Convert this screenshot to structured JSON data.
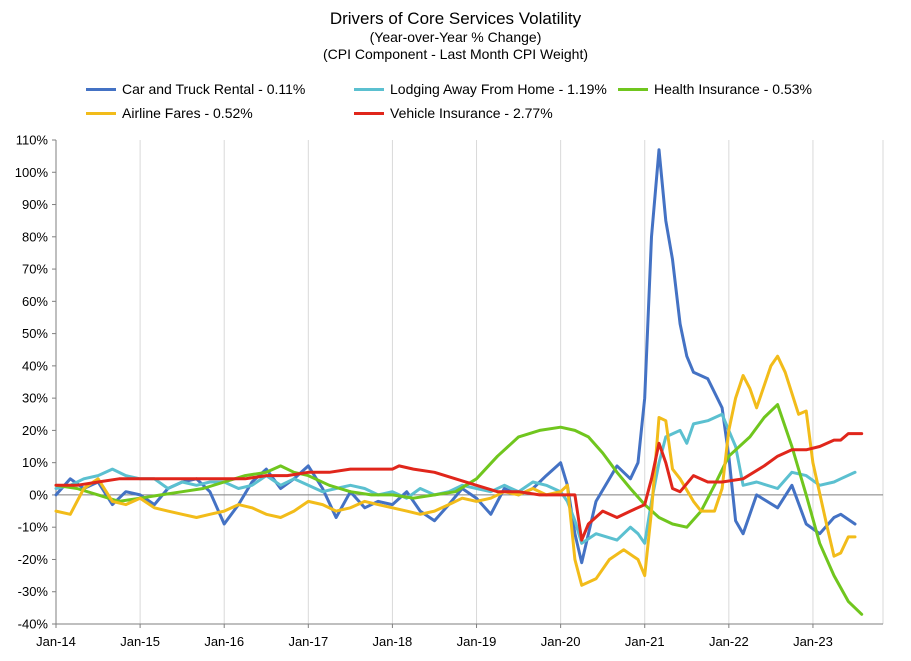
{
  "chart_data": {
    "type": "line",
    "title": "Drivers of Core Services Volatility",
    "subtitle_lines": [
      "(Year-over-Year % Change)",
      "(CPI Component - Last Month CPI Weight)"
    ],
    "y_ticks": [
      "110%",
      "100%",
      "90%",
      "80%",
      "70%",
      "60%",
      "50%",
      "40%",
      "30%",
      "20%",
      "10%",
      "0%",
      "-10%",
      "-20%",
      "-30%",
      "-40%"
    ],
    "x_ticks": [
      "Jan-14",
      "Jan-15",
      "Jan-16",
      "Jan-17",
      "Jan-18",
      "Jan-19",
      "Jan-20",
      "Jan-21",
      "Jan-22",
      "Jan-23"
    ],
    "ylim": [
      -40,
      110
    ],
    "xlim": [
      2014.0,
      2023.833
    ],
    "grid": "vertical",
    "legend_position": "top",
    "series": [
      {
        "name": "Car and Truck Rental - 0.11%",
        "color": "#4472C4",
        "points": [
          [
            2014.0,
            0
          ],
          [
            2014.17,
            5
          ],
          [
            2014.33,
            2
          ],
          [
            2014.5,
            4
          ],
          [
            2014.67,
            -3
          ],
          [
            2014.83,
            1
          ],
          [
            2015.0,
            0
          ],
          [
            2015.17,
            -3
          ],
          [
            2015.33,
            2
          ],
          [
            2015.5,
            4
          ],
          [
            2015.67,
            5
          ],
          [
            2015.83,
            1
          ],
          [
            2016.0,
            -9
          ],
          [
            2016.17,
            -3
          ],
          [
            2016.33,
            4
          ],
          [
            2016.5,
            8
          ],
          [
            2016.67,
            2
          ],
          [
            2016.83,
            5
          ],
          [
            2017.0,
            9
          ],
          [
            2017.17,
            2
          ],
          [
            2017.33,
            -7
          ],
          [
            2017.5,
            1
          ],
          [
            2017.67,
            -4
          ],
          [
            2017.83,
            -2
          ],
          [
            2018.0,
            -3
          ],
          [
            2018.17,
            1
          ],
          [
            2018.33,
            -5
          ],
          [
            2018.5,
            -8
          ],
          [
            2018.67,
            -3
          ],
          [
            2018.83,
            2
          ],
          [
            2019.0,
            -1
          ],
          [
            2019.17,
            -6
          ],
          [
            2019.33,
            2
          ],
          [
            2019.5,
            0
          ],
          [
            2019.67,
            2
          ],
          [
            2019.83,
            6
          ],
          [
            2020.0,
            10
          ],
          [
            2020.08,
            3
          ],
          [
            2020.17,
            -12
          ],
          [
            2020.25,
            -21
          ],
          [
            2020.42,
            -2
          ],
          [
            2020.67,
            9
          ],
          [
            2020.83,
            5
          ],
          [
            2020.92,
            10
          ],
          [
            2021.0,
            30
          ],
          [
            2021.08,
            80
          ],
          [
            2021.17,
            107
          ],
          [
            2021.25,
            85
          ],
          [
            2021.33,
            73
          ],
          [
            2021.42,
            53
          ],
          [
            2021.5,
            43
          ],
          [
            2021.58,
            38
          ],
          [
            2021.75,
            36
          ],
          [
            2021.92,
            27
          ],
          [
            2022.0,
            12
          ],
          [
            2022.08,
            -8
          ],
          [
            2022.17,
            -12
          ],
          [
            2022.33,
            0
          ],
          [
            2022.58,
            -4
          ],
          [
            2022.75,
            3
          ],
          [
            2022.92,
            -9
          ],
          [
            2023.08,
            -12
          ],
          [
            2023.25,
            -7
          ],
          [
            2023.33,
            -6
          ],
          [
            2023.5,
            -9
          ]
        ]
      },
      {
        "name": "Lodging Away From Home - 1.19%",
        "color": "#5BC0D0",
        "points": [
          [
            2014.0,
            2
          ],
          [
            2014.17,
            3
          ],
          [
            2014.33,
            5
          ],
          [
            2014.5,
            6
          ],
          [
            2014.67,
            8
          ],
          [
            2014.83,
            6
          ],
          [
            2015.0,
            5
          ],
          [
            2015.17,
            5
          ],
          [
            2015.33,
            2
          ],
          [
            2015.5,
            4
          ],
          [
            2015.67,
            3
          ],
          [
            2015.83,
            4
          ],
          [
            2016.0,
            4
          ],
          [
            2016.17,
            2
          ],
          [
            2016.33,
            3
          ],
          [
            2016.5,
            6
          ],
          [
            2016.67,
            3
          ],
          [
            2016.83,
            5
          ],
          [
            2017.0,
            3
          ],
          [
            2017.17,
            1
          ],
          [
            2017.33,
            2
          ],
          [
            2017.5,
            3
          ],
          [
            2017.67,
            2
          ],
          [
            2017.83,
            0
          ],
          [
            2018.0,
            1
          ],
          [
            2018.17,
            -1
          ],
          [
            2018.33,
            2
          ],
          [
            2018.5,
            0
          ],
          [
            2018.67,
            1
          ],
          [
            2018.83,
            3
          ],
          [
            2019.0,
            2
          ],
          [
            2019.17,
            1
          ],
          [
            2019.33,
            3
          ],
          [
            2019.5,
            1
          ],
          [
            2019.67,
            4
          ],
          [
            2019.83,
            3
          ],
          [
            2020.0,
            1
          ],
          [
            2020.08,
            -2
          ],
          [
            2020.17,
            -8
          ],
          [
            2020.25,
            -15
          ],
          [
            2020.42,
            -12
          ],
          [
            2020.67,
            -14
          ],
          [
            2020.83,
            -10
          ],
          [
            2020.92,
            -12
          ],
          [
            2021.0,
            -15
          ],
          [
            2021.08,
            -2
          ],
          [
            2021.17,
            10
          ],
          [
            2021.25,
            18
          ],
          [
            2021.42,
            20
          ],
          [
            2021.5,
            16
          ],
          [
            2021.58,
            22
          ],
          [
            2021.75,
            23
          ],
          [
            2021.92,
            25
          ],
          [
            2022.0,
            20
          ],
          [
            2022.08,
            15
          ],
          [
            2022.17,
            3
          ],
          [
            2022.33,
            4
          ],
          [
            2022.58,
            2
          ],
          [
            2022.75,
            7
          ],
          [
            2022.92,
            6
          ],
          [
            2023.08,
            3
          ],
          [
            2023.25,
            4
          ],
          [
            2023.33,
            5
          ],
          [
            2023.5,
            7
          ]
        ]
      },
      {
        "name": "Health Insurance - 0.53%",
        "color": "#70C61E",
        "points": [
          [
            2014.0,
            3
          ],
          [
            2014.25,
            2
          ],
          [
            2014.5,
            0
          ],
          [
            2014.75,
            -2
          ],
          [
            2015.0,
            -1
          ],
          [
            2015.25,
            0
          ],
          [
            2015.5,
            1
          ],
          [
            2015.75,
            2
          ],
          [
            2016.0,
            4
          ],
          [
            2016.25,
            6
          ],
          [
            2016.5,
            7
          ],
          [
            2016.67,
            9
          ],
          [
            2016.83,
            7
          ],
          [
            2017.0,
            6
          ],
          [
            2017.25,
            3
          ],
          [
            2017.5,
            1
          ],
          [
            2017.75,
            0
          ],
          [
            2018.0,
            0
          ],
          [
            2018.25,
            -1
          ],
          [
            2018.5,
            0
          ],
          [
            2018.75,
            1
          ],
          [
            2019.0,
            5
          ],
          [
            2019.25,
            12
          ],
          [
            2019.5,
            18
          ],
          [
            2019.75,
            20
          ],
          [
            2020.0,
            21
          ],
          [
            2020.17,
            20
          ],
          [
            2020.33,
            18
          ],
          [
            2020.5,
            13
          ],
          [
            2020.67,
            7
          ],
          [
            2020.83,
            2
          ],
          [
            2021.0,
            -3
          ],
          [
            2021.17,
            -7
          ],
          [
            2021.33,
            -9
          ],
          [
            2021.5,
            -10
          ],
          [
            2021.67,
            -5
          ],
          [
            2021.83,
            3
          ],
          [
            2022.0,
            12
          ],
          [
            2022.25,
            18
          ],
          [
            2022.42,
            24
          ],
          [
            2022.58,
            28
          ],
          [
            2022.75,
            15
          ],
          [
            2022.92,
            0
          ],
          [
            2023.08,
            -15
          ],
          [
            2023.25,
            -25
          ],
          [
            2023.42,
            -33
          ],
          [
            2023.58,
            -37
          ]
        ]
      },
      {
        "name": "Airline Fares - 0.52%",
        "color": "#F2BC1A",
        "points": [
          [
            2014.0,
            -5
          ],
          [
            2014.17,
            -6
          ],
          [
            2014.33,
            2
          ],
          [
            2014.5,
            5
          ],
          [
            2014.67,
            -2
          ],
          [
            2014.83,
            -3
          ],
          [
            2015.0,
            -1
          ],
          [
            2015.17,
            -4
          ],
          [
            2015.33,
            -5
          ],
          [
            2015.5,
            -6
          ],
          [
            2015.67,
            -7
          ],
          [
            2015.83,
            -6
          ],
          [
            2016.0,
            -5
          ],
          [
            2016.17,
            -3
          ],
          [
            2016.33,
            -4
          ],
          [
            2016.5,
            -6
          ],
          [
            2016.67,
            -7
          ],
          [
            2016.83,
            -5
          ],
          [
            2017.0,
            -2
          ],
          [
            2017.17,
            -3
          ],
          [
            2017.33,
            -5
          ],
          [
            2017.5,
            -4
          ],
          [
            2017.67,
            -2
          ],
          [
            2017.83,
            -3
          ],
          [
            2018.0,
            -4
          ],
          [
            2018.17,
            -5
          ],
          [
            2018.33,
            -6
          ],
          [
            2018.5,
            -5
          ],
          [
            2018.67,
            -3
          ],
          [
            2018.83,
            -1
          ],
          [
            2019.0,
            -2
          ],
          [
            2019.17,
            -1
          ],
          [
            2019.33,
            1
          ],
          [
            2019.5,
            0
          ],
          [
            2019.67,
            2
          ],
          [
            2019.83,
            0
          ],
          [
            2020.0,
            1
          ],
          [
            2020.08,
            3
          ],
          [
            2020.17,
            -20
          ],
          [
            2020.25,
            -28
          ],
          [
            2020.42,
            -26
          ],
          [
            2020.58,
            -20
          ],
          [
            2020.75,
            -17
          ],
          [
            2020.92,
            -20
          ],
          [
            2021.0,
            -25
          ],
          [
            2021.08,
            -5
          ],
          [
            2021.17,
            24
          ],
          [
            2021.25,
            23
          ],
          [
            2021.33,
            8
          ],
          [
            2021.42,
            5
          ],
          [
            2021.58,
            -2
          ],
          [
            2021.67,
            -5
          ],
          [
            2021.83,
            -5
          ],
          [
            2021.92,
            2
          ],
          [
            2022.0,
            20
          ],
          [
            2022.08,
            30
          ],
          [
            2022.17,
            37
          ],
          [
            2022.25,
            33
          ],
          [
            2022.33,
            27
          ],
          [
            2022.5,
            40
          ],
          [
            2022.58,
            43
          ],
          [
            2022.67,
            38
          ],
          [
            2022.83,
            25
          ],
          [
            2022.92,
            26
          ],
          [
            2023.0,
            10
          ],
          [
            2023.17,
            -10
          ],
          [
            2023.25,
            -19
          ],
          [
            2023.33,
            -18
          ],
          [
            2023.42,
            -13
          ],
          [
            2023.5,
            -13
          ]
        ]
      },
      {
        "name": "Vehicle Insurance - 2.77%",
        "color": "#E0261B",
        "points": [
          [
            2014.0,
            3
          ],
          [
            2014.25,
            3
          ],
          [
            2014.5,
            4
          ],
          [
            2014.75,
            5
          ],
          [
            2015.0,
            5
          ],
          [
            2015.25,
            5
          ],
          [
            2015.5,
            5
          ],
          [
            2015.75,
            5
          ],
          [
            2016.0,
            5
          ],
          [
            2016.25,
            5
          ],
          [
            2016.5,
            6
          ],
          [
            2016.75,
            6
          ],
          [
            2017.0,
            7
          ],
          [
            2017.25,
            7
          ],
          [
            2017.5,
            8
          ],
          [
            2017.75,
            8
          ],
          [
            2018.0,
            8
          ],
          [
            2018.08,
            9
          ],
          [
            2018.25,
            8
          ],
          [
            2018.5,
            7
          ],
          [
            2018.75,
            5
          ],
          [
            2019.0,
            3
          ],
          [
            2019.25,
            1
          ],
          [
            2019.5,
            1
          ],
          [
            2019.75,
            0
          ],
          [
            2020.0,
            0
          ],
          [
            2020.17,
            0
          ],
          [
            2020.25,
            -14
          ],
          [
            2020.33,
            -9
          ],
          [
            2020.5,
            -5
          ],
          [
            2020.67,
            -7
          ],
          [
            2020.83,
            -5
          ],
          [
            2021.0,
            -3
          ],
          [
            2021.08,
            5
          ],
          [
            2021.17,
            16
          ],
          [
            2021.25,
            10
          ],
          [
            2021.33,
            2
          ],
          [
            2021.42,
            1
          ],
          [
            2021.58,
            6
          ],
          [
            2021.75,
            4
          ],
          [
            2021.92,
            4
          ],
          [
            2022.17,
            5
          ],
          [
            2022.42,
            9
          ],
          [
            2022.58,
            12
          ],
          [
            2022.75,
            14
          ],
          [
            2022.92,
            14
          ],
          [
            2023.08,
            15
          ],
          [
            2023.25,
            17
          ],
          [
            2023.33,
            17
          ],
          [
            2023.42,
            19
          ],
          [
            2023.58,
            19
          ]
        ]
      }
    ]
  }
}
